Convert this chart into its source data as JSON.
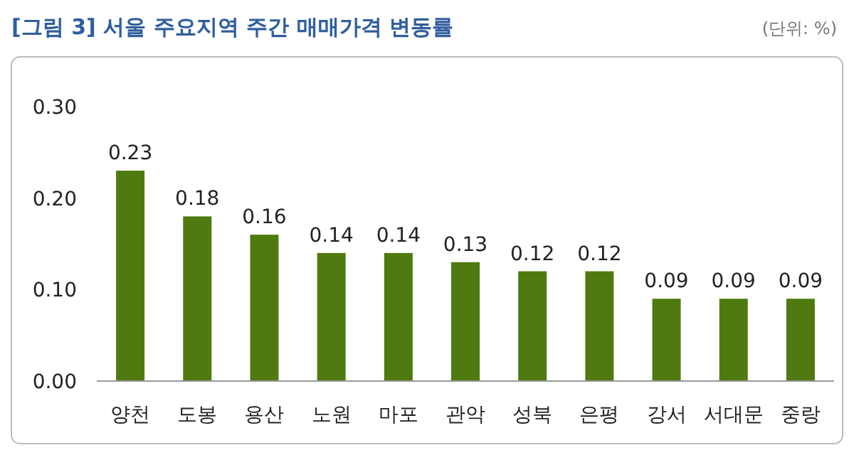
{
  "chart_data": {
    "type": "bar",
    "title": "[그림 3] 서울 주요지역 주간 매매가격 변동률",
    "annotations": [
      "(단위: %)"
    ],
    "categories": [
      "양천",
      "도봉",
      "용산",
      "노원",
      "마포",
      "관악",
      "성북",
      "은평",
      "강서",
      "서대문",
      "중랑"
    ],
    "values": [
      0.23,
      0.18,
      0.16,
      0.14,
      0.14,
      0.13,
      0.12,
      0.12,
      0.09,
      0.09,
      0.09
    ],
    "color": "#4e7a10",
    "data_labels": true,
    "ylim": [
      0,
      0.3
    ],
    "yticks": [
      {
        "value": 0,
        "label": "0.00"
      },
      {
        "value": 0.1,
        "label": "0.10"
      },
      {
        "value": 0.2,
        "label": "0.20"
      },
      {
        "value": 0.3,
        "label": "0.30"
      }
    ]
  }
}
